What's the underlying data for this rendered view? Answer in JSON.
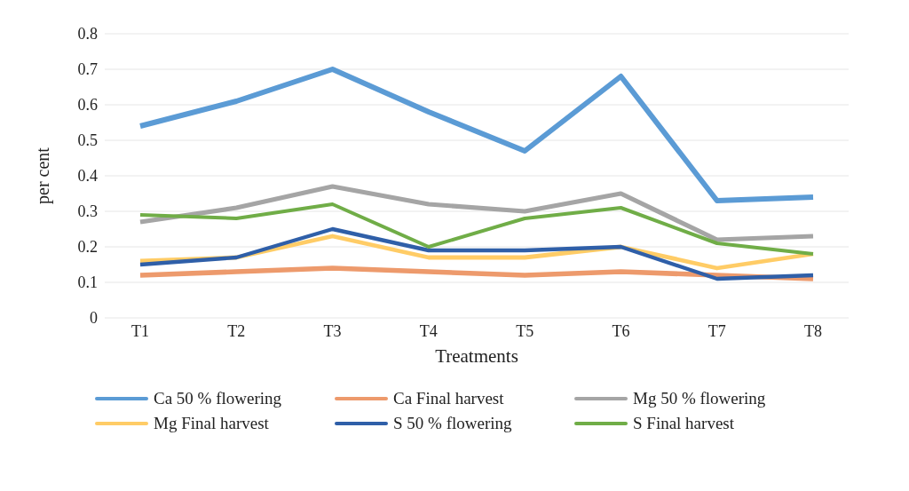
{
  "chart_data": {
    "type": "line",
    "xlabel": "Treatments",
    "ylabel": "per cent",
    "categories": [
      "T1",
      "T2",
      "T3",
      "T4",
      "T5",
      "T6",
      "T7",
      "T8"
    ],
    "ylim": [
      0,
      0.8
    ],
    "yticks": [
      0,
      0.1,
      0.2,
      0.3,
      0.4,
      0.5,
      0.6,
      0.7,
      0.8
    ],
    "grid": "y",
    "legend": "bottom",
    "marker": "none",
    "series": [
      {
        "name": "Ca 50 % flowering",
        "color": "#5b9bd5",
        "values": [
          0.54,
          0.61,
          0.7,
          0.58,
          0.47,
          0.68,
          0.33,
          0.34
        ]
      },
      {
        "name": "Ca Final harvest",
        "color": "#ed9a6c",
        "values": [
          0.12,
          0.13,
          0.14,
          0.13,
          0.12,
          0.13,
          0.12,
          0.11
        ]
      },
      {
        "name": "Mg 50 % flowering",
        "color": "#a5a5a5",
        "values": [
          0.27,
          0.31,
          0.37,
          0.32,
          0.3,
          0.35,
          0.22,
          0.23
        ]
      },
      {
        "name": "Mg Final harvest",
        "color": "#ffcc66",
        "values": [
          0.16,
          0.17,
          0.23,
          0.17,
          0.17,
          0.2,
          0.14,
          0.18
        ]
      },
      {
        "name": "S 50 % flowering",
        "color": "#2f5fa8",
        "values": [
          0.15,
          0.17,
          0.25,
          0.19,
          0.19,
          0.2,
          0.11,
          0.12
        ]
      },
      {
        "name": "S Final harvest",
        "color": "#70ad47",
        "values": [
          0.29,
          0.28,
          0.32,
          0.2,
          0.28,
          0.31,
          0.21,
          0.18
        ]
      }
    ]
  }
}
